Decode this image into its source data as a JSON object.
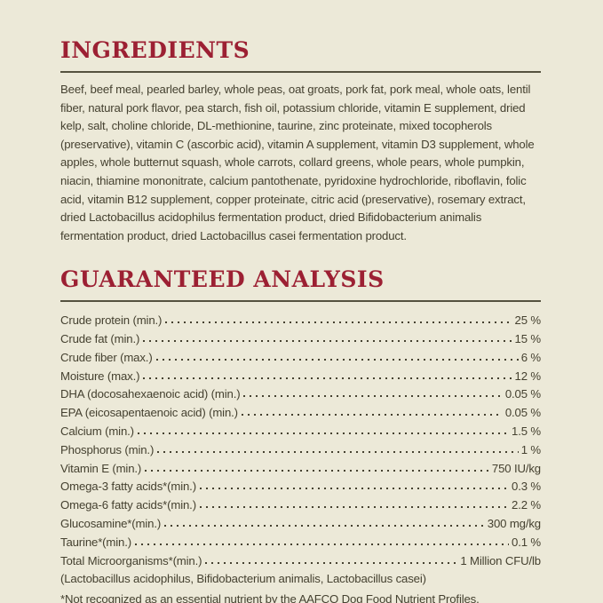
{
  "colors": {
    "background": "#ece9d8",
    "accent_red": "#9c2033",
    "body_text": "#454130",
    "rule": "#55523f"
  },
  "ingredients": {
    "title": "INGREDIENTS",
    "text": "Beef, beef meal, pearled barley, whole peas, oat groats, pork fat, pork meal, whole oats, lentil fiber, natural pork flavor, pea starch, fish oil, potassium chloride, vitamin E supplement, dried kelp, salt, choline chloride, DL-methionine, taurine, zinc proteinate, mixed tocopherols (preservative), vitamin C (ascorbic acid), vitamin A supplement, vitamin D3 supplement, whole apples, whole butternut squash, whole carrots, collard greens, whole pears, whole pumpkin, niacin, thiamine mononitrate, calcium pantothenate, pyridoxine hydrochloride, riboflavin, folic acid, vitamin B12 supplement, copper proteinate, citric acid (preservative), rosemary extract, dried Lactobacillus acidophilus fermentation product, dried Bifidobacterium animalis fermentation product, dried Lactobacillus casei fermentation product."
  },
  "analysis": {
    "title": "GUARANTEED ANALYSIS",
    "rows": [
      {
        "label": "Crude protein (min.)",
        "value": "25 %"
      },
      {
        "label": "Crude fat (min.)",
        "value": "15 %"
      },
      {
        "label": "Crude fiber (max.)",
        "value": "6 %"
      },
      {
        "label": "Moisture (max.)",
        "value": "12 %"
      },
      {
        "label": "DHA (docosahexaenoic acid) (min.)",
        "value": "0.05 %"
      },
      {
        "label": "EPA (eicosapentaenoic acid) (min.)",
        "value": "0.05 %"
      },
      {
        "label": "Calcium (min.)",
        "value": "1.5 %"
      },
      {
        "label": "Phosphorus (min.)",
        "value": "1 %"
      },
      {
        "label": "Vitamin E (min.)",
        "value": "750 IU/kg"
      },
      {
        "label": "Omega-3 fatty acids*(min.)",
        "value": "0.3 %"
      },
      {
        "label": "Omega-6 fatty acids*(min.)",
        "value": "2.2 %"
      },
      {
        "label": "Glucosamine*(min.)",
        "value": "300 mg/kg"
      },
      {
        "label": "Taurine*(min.)",
        "value": "0.1 %"
      },
      {
        "label": "Total Microorganisms*(min.)",
        "value": "1 Million CFU/lb"
      }
    ],
    "microorganisms_note": "(Lactobacillus acidophilus, Bifidobacterium animalis, Lactobacillus casei)",
    "footnote": "*Not recognized as an essential nutrient by the AAFCO Dog Food Nutrient Profiles."
  }
}
